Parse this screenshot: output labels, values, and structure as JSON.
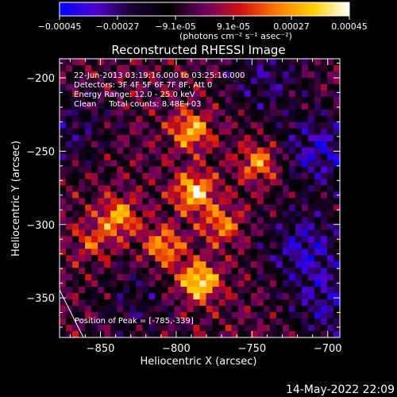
{
  "colorbar": {
    "tick_labels": [
      "-0.00045",
      "-0.00027",
      "-9.1e-05",
      "9.1e-05",
      "0.00027",
      "0.00045"
    ],
    "unit_label": "(photons cm⁻² s⁻¹ asec⁻²)",
    "range": [
      -0.00045,
      0.00045
    ],
    "colormap": [
      "#0000ff",
      "#5000d0",
      "#1a0030",
      "#000000",
      "#6a0060",
      "#d01010",
      "#ff7a00",
      "#ffd000",
      "#ffffff"
    ]
  },
  "chart_data": {
    "type": "heatmap",
    "title": "Reconstructed RHESSI Image",
    "xlabel": "Heliocentric X (arcsec)",
    "ylabel": "Heliocentric Y (arcsec)",
    "xlim": [
      -877,
      -692
    ],
    "ylim": [
      -377,
      -187
    ],
    "x_ticks": [
      -850,
      -800,
      -750,
      -700
    ],
    "x_tick_labels": [
      "−850",
      "−800",
      "−750",
      "−700"
    ],
    "y_ticks": [
      -200,
      -250,
      -300,
      -350
    ],
    "y_tick_labels": [
      "−200",
      "−250",
      "−300",
      "−350"
    ],
    "annotations": [
      "22-Jun-2013 03:19:16.000 to 03:25:16.000",
      "Detectors: 3F 4F 5F 6F 7F 8F, Att 0",
      "Energy Range: 12.0 - 25.0 keV",
      "Clean     Total counts: 8.48E+03"
    ],
    "peak_label": "Position of Peak = [-785,-339]",
    "peak": {
      "x": -785,
      "y": -339
    },
    "bright_regions": [
      {
        "x": -788,
        "y": -278,
        "level": 0.0004
      },
      {
        "x": -790,
        "y": -236,
        "level": 0.00034
      },
      {
        "x": -745,
        "y": -258,
        "level": 0.0003
      },
      {
        "x": -838,
        "y": -295,
        "level": 0.00032
      },
      {
        "x": -808,
        "y": -315,
        "level": 0.0003
      },
      {
        "x": -785,
        "y": -339,
        "level": 0.00045
      },
      {
        "x": -770,
        "y": -300,
        "level": 0.00026
      },
      {
        "x": -855,
        "y": -312,
        "level": 0.00018
      }
    ],
    "negative_regions": [
      {
        "x": -705,
        "y": -250,
        "level": -0.0003
      },
      {
        "x": -715,
        "y": -315,
        "level": -0.00028
      },
      {
        "x": -700,
        "y": -355,
        "level": -0.00024
      },
      {
        "x": -740,
        "y": -200,
        "level": -0.0002
      },
      {
        "x": -870,
        "y": -235,
        "level": -0.00018
      },
      {
        "x": -830,
        "y": -355,
        "level": -0.00014
      }
    ]
  },
  "footer": {
    "timestamp": "14-May-2022 22:09"
  }
}
